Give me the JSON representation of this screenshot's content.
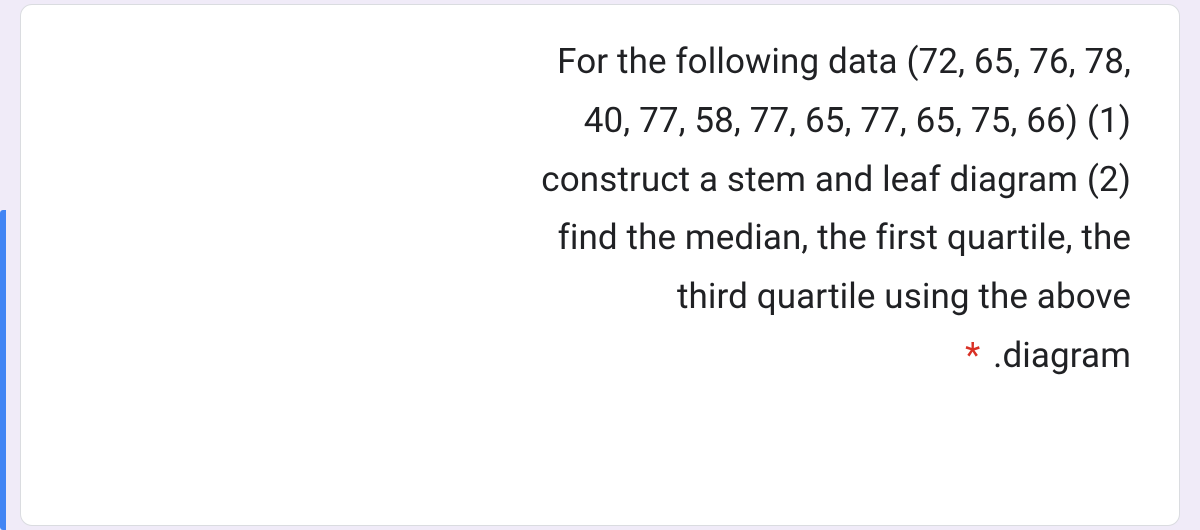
{
  "card": {
    "lines": [
      "For the following data (72, 65, 76, 78,",
      "40, 77, 58, 77, 65, 77, 65, 75, 66) (1)",
      "construct a stem and leaf diagram (2)",
      "find the median, the first quartile, the",
      "third quartile using the above"
    ],
    "lastLinePrefix": "*",
    "lastLineText": " .diagram"
  },
  "colors": {
    "page_bg": "#f0ebf8",
    "card_bg": "#ffffff",
    "card_border": "#dadce0",
    "text": "#202124",
    "required": "#d93025",
    "accent": "#4285f4"
  }
}
